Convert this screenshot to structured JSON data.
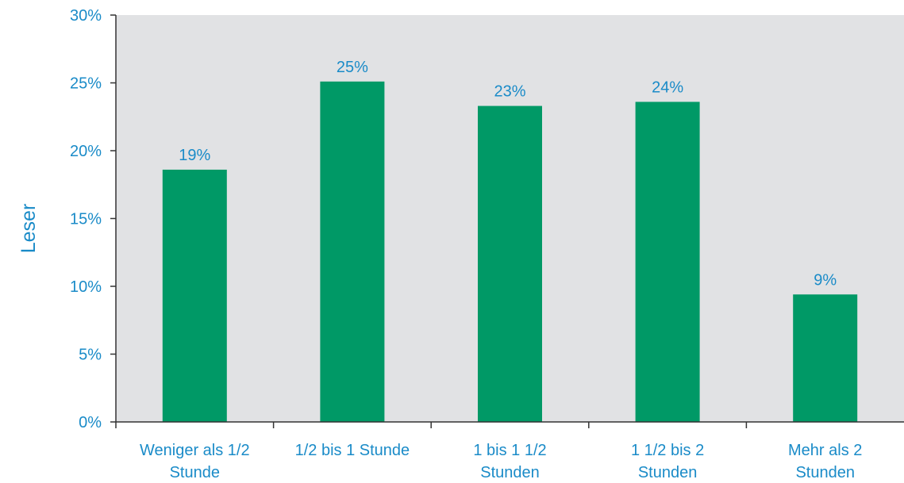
{
  "chart_data": {
    "type": "bar",
    "categories": [
      [
        "Weniger als 1/2",
        "Stunde"
      ],
      [
        "1/2 bis 1 Stunde"
      ],
      [
        "1 bis 1 1/2",
        "Stunden"
      ],
      [
        "1 1/2 bis 2",
        "Stunden"
      ],
      [
        "Mehr als 2",
        "Stunden"
      ]
    ],
    "values": [
      18.6,
      25.1,
      23.3,
      23.6,
      9.4
    ],
    "data_labels": [
      "19%",
      "25%",
      "23%",
      "24%",
      "9%"
    ],
    "title": "",
    "xlabel": "",
    "ylabel": "Leser",
    "ylim": [
      0,
      30
    ],
    "yticks": [
      0,
      5,
      10,
      15,
      20,
      25,
      30
    ],
    "ytick_labels": [
      "0%",
      "5%",
      "10%",
      "15%",
      "20%",
      "25%",
      "30%"
    ],
    "grid": false,
    "legend": "none",
    "colors": {
      "bar": "#009966",
      "plot_background": "#e1e2e4",
      "text": "#1a8bc8",
      "axis": "#333333"
    }
  }
}
